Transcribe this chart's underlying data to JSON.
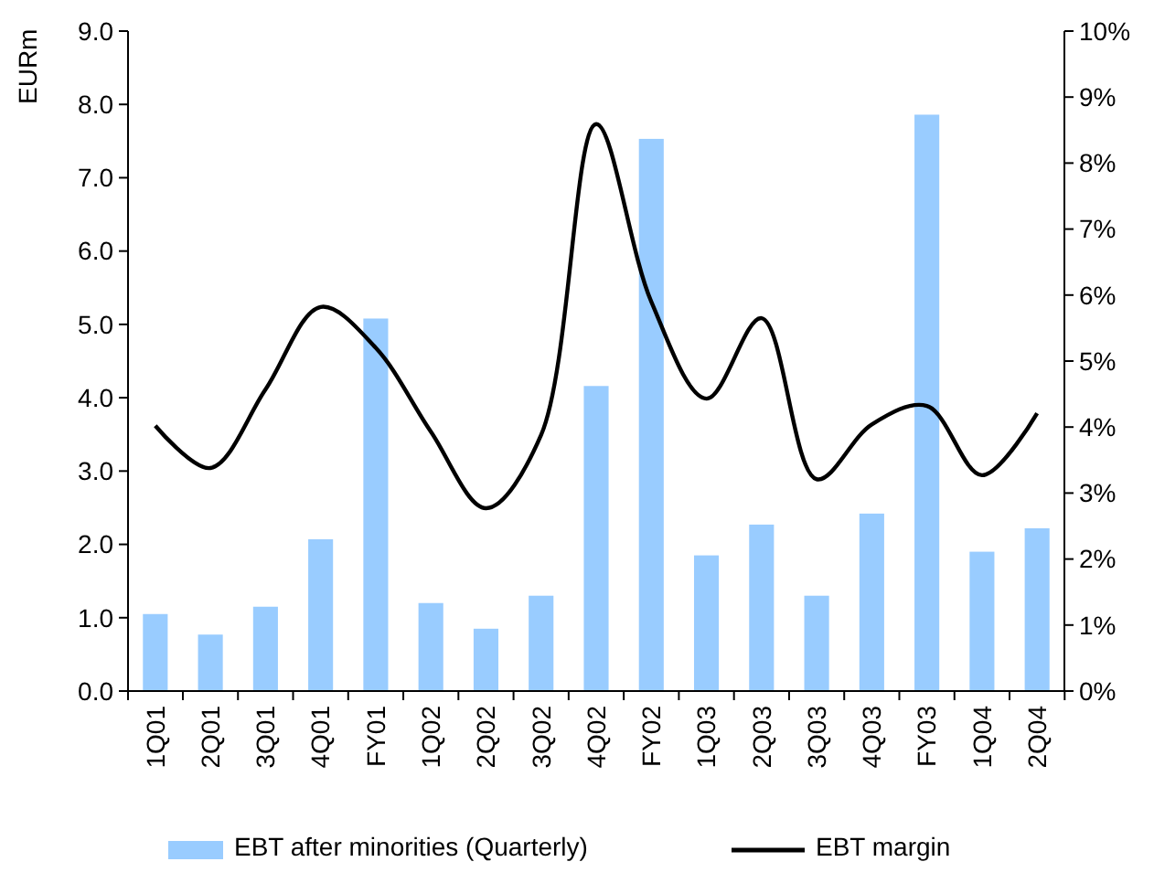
{
  "chart_data": {
    "type": "bar",
    "ylabel": "EURm",
    "categories": [
      "1Q01",
      "2Q01",
      "3Q01",
      "4Q01",
      "FY01",
      "1Q02",
      "2Q02",
      "3Q02",
      "4Q02",
      "FY02",
      "1Q03",
      "2Q03",
      "3Q03",
      "4Q03",
      "FY03",
      "1Q04",
      "2Q04"
    ],
    "series": [
      {
        "name": "EBT after minorities (Quarterly)",
        "color": "#99ccff",
        "values": [
          1.05,
          0.77,
          1.15,
          2.07,
          5.08,
          1.2,
          0.85,
          1.3,
          4.16,
          7.53,
          1.85,
          2.27,
          1.3,
          2.42,
          7.86,
          1.9,
          2.22
        ]
      },
      {
        "name": "EBT margin",
        "type": "line",
        "axis": "y2",
        "color": "#000000",
        "values": [
          4.02,
          3.38,
          4.57,
          5.82,
          5.2,
          3.93,
          2.77,
          3.88,
          8.59,
          5.9,
          4.43,
          5.65,
          3.21,
          4.04,
          4.32,
          3.27,
          4.21
        ]
      }
    ],
    "ylim": [
      0,
      9
    ],
    "yticks": [
      {
        "value": 0,
        "label": "0.0"
      },
      {
        "value": 1,
        "label": "1.0"
      },
      {
        "value": 2,
        "label": "2.0"
      },
      {
        "value": 3,
        "label": "3.0"
      },
      {
        "value": 4,
        "label": "4.0"
      },
      {
        "value": 5,
        "label": "5.0"
      },
      {
        "value": 6,
        "label": "6.0"
      },
      {
        "value": 7,
        "label": "7.0"
      },
      {
        "value": 8,
        "label": "8.0"
      },
      {
        "value": 9,
        "label": "9.0"
      }
    ],
    "y2lim": [
      0,
      10
    ],
    "y2ticks": [
      {
        "value": 0,
        "label": "0%"
      },
      {
        "value": 1,
        "label": "1%"
      },
      {
        "value": 2,
        "label": "2%"
      },
      {
        "value": 3,
        "label": "3%"
      },
      {
        "value": 4,
        "label": "4%"
      },
      {
        "value": 5,
        "label": "5%"
      },
      {
        "value": 6,
        "label": "6%"
      },
      {
        "value": 7,
        "label": "7%"
      },
      {
        "value": 8,
        "label": "8%"
      },
      {
        "value": 9,
        "label": "9%"
      },
      {
        "value": 10,
        "label": "10%"
      }
    ],
    "grid": false,
    "legend": "bottom",
    "line_style": "solid",
    "marker": "none"
  }
}
